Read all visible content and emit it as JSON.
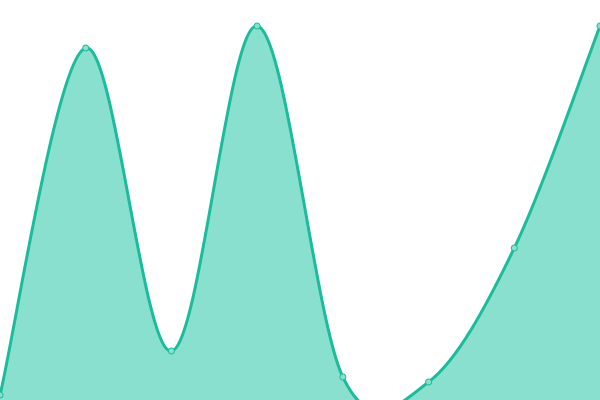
{
  "chart_data": {
    "type": "area",
    "title": "",
    "xlabel": "",
    "ylabel": "",
    "x": [
      0,
      1,
      2,
      3,
      4,
      5,
      6,
      7
    ],
    "series": [
      {
        "values": [
          5,
          352,
          49,
          374,
          23,
          18,
          152,
          374
        ]
      }
    ],
    "xlim": [
      0,
      7
    ],
    "ylim": [
      0,
      400
    ],
    "grid": false,
    "axes_visible": false,
    "curve": "smooth",
    "colors": {
      "line": "#1abc9c",
      "fill": "#8ae0ce",
      "point": "#8ae0ce"
    }
  }
}
